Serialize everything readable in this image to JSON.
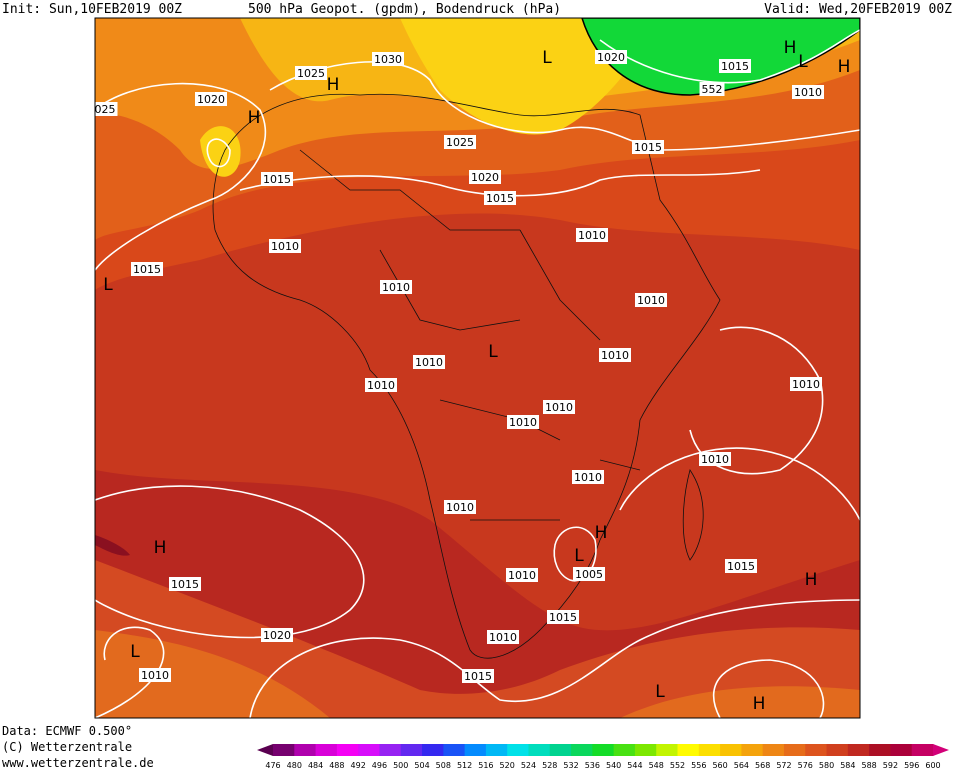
{
  "header": {
    "init": "Init: Sun,10FEB2019 00Z",
    "title": "500 hPa Geopot. (gpdm), Bodendruck (hPa)",
    "valid": "Valid: Wed,20FEB2019 00Z"
  },
  "map": {
    "labels": [
      "025",
      "1020",
      "H",
      "1025",
      "H",
      "1030",
      "L",
      "1020",
      "1015",
      "H",
      "L",
      "H",
      "552",
      "1010",
      "1025",
      "1015",
      "1015",
      "1020",
      "1015",
      "1010",
      "1010",
      "1015",
      "L",
      "1010",
      "1010",
      "L",
      "1010",
      "1010",
      "1010",
      "1010",
      "1010",
      "1010",
      "1010",
      "1010",
      "1010",
      "H",
      "H",
      "L",
      "1010",
      "1005",
      "1015",
      "H",
      "1015",
      "1015",
      "1020",
      "1010",
      "L",
      "1010",
      "1015",
      "L",
      "H"
    ]
  },
  "footer": {
    "data": "Data: ECMWF   0.500°",
    "copyright": "(C) Wetterzentrale",
    "url": "www.wetterzentrale.de"
  },
  "legend": {
    "ticks": [
      476,
      480,
      484,
      488,
      492,
      496,
      500,
      504,
      508,
      512,
      516,
      520,
      524,
      528,
      532,
      536,
      540,
      544,
      548,
      552,
      556,
      560,
      564,
      568,
      572,
      576,
      580,
      584,
      588,
      592,
      596,
      600
    ]
  }
}
